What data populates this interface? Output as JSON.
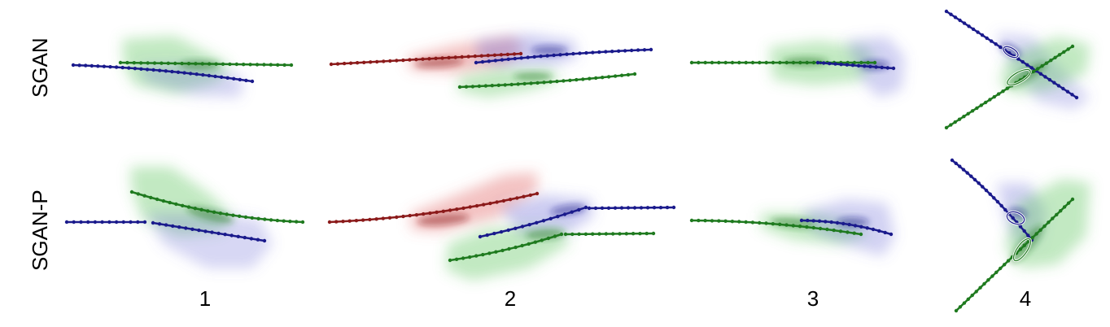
{
  "row_labels": [
    "SGAN",
    "SGAN-P"
  ],
  "column_labels": [
    "1",
    "2",
    "3",
    "4"
  ],
  "colors": {
    "blue": "#1a1a8c",
    "green": "#1f7a1f",
    "red": "#8b1a1a",
    "blue_shade": "#6a6ad8",
    "green_shade": "#4fbf4f",
    "red_shade": "#e06a6a"
  }
}
